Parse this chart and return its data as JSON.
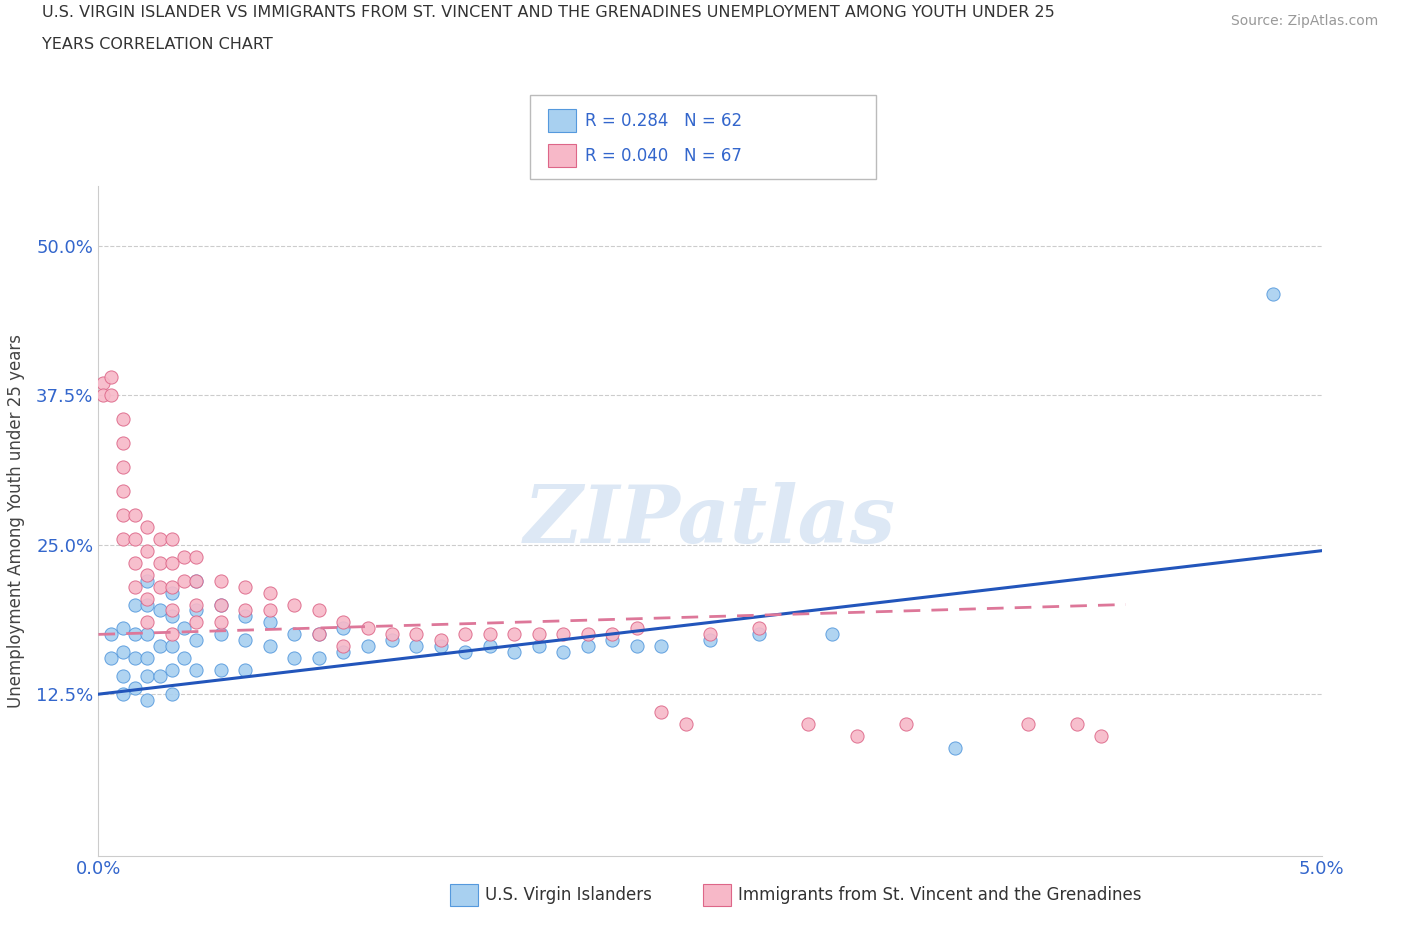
{
  "title_line1": "U.S. VIRGIN ISLANDER VS IMMIGRANTS FROM ST. VINCENT AND THE GRENADINES UNEMPLOYMENT AMONG YOUTH UNDER 25",
  "title_line2": "YEARS CORRELATION CHART",
  "source_text": "Source: ZipAtlas.com",
  "ylabel": "Unemployment Among Youth under 25 years",
  "xlim": [
    0.0,
    0.05
  ],
  "ylim": [
    -0.01,
    0.55
  ],
  "xticks": [
    0.0,
    0.01,
    0.02,
    0.03,
    0.04,
    0.05
  ],
  "xticklabels": [
    "0.0%",
    "",
    "",
    "",
    "",
    "5.0%"
  ],
  "yticks": [
    0.0,
    0.125,
    0.25,
    0.375,
    0.5
  ],
  "yticklabels": [
    "",
    "12.5%",
    "25.0%",
    "37.5%",
    "50.0%"
  ],
  "blue_R": 0.284,
  "blue_N": 62,
  "pink_R": 0.04,
  "pink_N": 67,
  "blue_color": "#a8d0f0",
  "pink_color": "#f7b8c8",
  "blue_edge_color": "#5599dd",
  "pink_edge_color": "#dd6688",
  "blue_line_color": "#2255bb",
  "pink_line_color": "#dd7799",
  "watermark": "ZIPatlas",
  "legend_label_blue": "U.S. Virgin Islanders",
  "legend_label_pink": "Immigrants from St. Vincent and the Grenadines",
  "blue_scatter_x": [
    0.0005,
    0.0005,
    0.001,
    0.001,
    0.001,
    0.001,
    0.0015,
    0.0015,
    0.0015,
    0.0015,
    0.002,
    0.002,
    0.002,
    0.002,
    0.002,
    0.002,
    0.0025,
    0.0025,
    0.0025,
    0.003,
    0.003,
    0.003,
    0.003,
    0.003,
    0.0035,
    0.0035,
    0.004,
    0.004,
    0.004,
    0.004,
    0.005,
    0.005,
    0.005,
    0.006,
    0.006,
    0.006,
    0.007,
    0.007,
    0.008,
    0.008,
    0.009,
    0.009,
    0.01,
    0.01,
    0.011,
    0.012,
    0.013,
    0.014,
    0.015,
    0.016,
    0.017,
    0.018,
    0.019,
    0.02,
    0.021,
    0.022,
    0.023,
    0.025,
    0.027,
    0.03,
    0.035,
    0.048
  ],
  "blue_scatter_y": [
    0.175,
    0.155,
    0.18,
    0.16,
    0.14,
    0.125,
    0.2,
    0.175,
    0.155,
    0.13,
    0.22,
    0.2,
    0.175,
    0.155,
    0.14,
    0.12,
    0.195,
    0.165,
    0.14,
    0.21,
    0.19,
    0.165,
    0.145,
    0.125,
    0.18,
    0.155,
    0.22,
    0.195,
    0.17,
    0.145,
    0.2,
    0.175,
    0.145,
    0.19,
    0.17,
    0.145,
    0.185,
    0.165,
    0.175,
    0.155,
    0.175,
    0.155,
    0.18,
    0.16,
    0.165,
    0.17,
    0.165,
    0.165,
    0.16,
    0.165,
    0.16,
    0.165,
    0.16,
    0.165,
    0.17,
    0.165,
    0.165,
    0.17,
    0.175,
    0.175,
    0.08,
    0.46
  ],
  "pink_scatter_x": [
    0.0002,
    0.0002,
    0.0005,
    0.0005,
    0.001,
    0.001,
    0.001,
    0.001,
    0.001,
    0.001,
    0.0015,
    0.0015,
    0.0015,
    0.0015,
    0.002,
    0.002,
    0.002,
    0.002,
    0.002,
    0.0025,
    0.0025,
    0.0025,
    0.003,
    0.003,
    0.003,
    0.003,
    0.003,
    0.0035,
    0.0035,
    0.004,
    0.004,
    0.004,
    0.004,
    0.005,
    0.005,
    0.005,
    0.006,
    0.006,
    0.007,
    0.007,
    0.008,
    0.009,
    0.009,
    0.01,
    0.01,
    0.011,
    0.012,
    0.013,
    0.014,
    0.015,
    0.016,
    0.017,
    0.018,
    0.019,
    0.02,
    0.021,
    0.022,
    0.023,
    0.024,
    0.025,
    0.027,
    0.029,
    0.031,
    0.033,
    0.038,
    0.04,
    0.041
  ],
  "pink_scatter_y": [
    0.385,
    0.375,
    0.39,
    0.375,
    0.355,
    0.335,
    0.315,
    0.295,
    0.275,
    0.255,
    0.275,
    0.255,
    0.235,
    0.215,
    0.265,
    0.245,
    0.225,
    0.205,
    0.185,
    0.255,
    0.235,
    0.215,
    0.255,
    0.235,
    0.215,
    0.195,
    0.175,
    0.24,
    0.22,
    0.24,
    0.22,
    0.2,
    0.185,
    0.22,
    0.2,
    0.185,
    0.215,
    0.195,
    0.21,
    0.195,
    0.2,
    0.195,
    0.175,
    0.185,
    0.165,
    0.18,
    0.175,
    0.175,
    0.17,
    0.175,
    0.175,
    0.175,
    0.175,
    0.175,
    0.175,
    0.175,
    0.18,
    0.11,
    0.1,
    0.175,
    0.18,
    0.1,
    0.09,
    0.1,
    0.1,
    0.1,
    0.09
  ]
}
